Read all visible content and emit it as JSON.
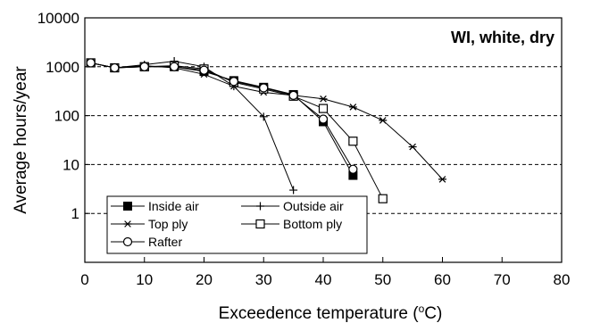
{
  "chart_data": {
    "type": "line",
    "annotation": "WI, white, dry",
    "xlabel": "Exceedence temperature (",
    "xlabel_unit_super": "o",
    "xlabel_unit_tail": "C)",
    "ylabel": "Average hours/year",
    "xlim": [
      0,
      80
    ],
    "ylim": [
      0.1,
      10000
    ],
    "y_scale": "log",
    "grid": "horizontal dashed",
    "legend_position": "bottom-left",
    "x_ticks": [
      "0",
      "10",
      "20",
      "30",
      "40",
      "50",
      "60",
      "70",
      "80"
    ],
    "y_ticks": [
      "1",
      "10",
      "100",
      "1000",
      "10000"
    ],
    "series": [
      {
        "name": "Inside air",
        "marker": "filled-square",
        "x": [
          1,
          5,
          10,
          15,
          20,
          25,
          30,
          35,
          40,
          45
        ],
        "y": [
          1200,
          950,
          1000,
          1000,
          800,
          520,
          380,
          270,
          75,
          6
        ]
      },
      {
        "name": "Outside air",
        "marker": "plus",
        "x": [
          1,
          5,
          10,
          15,
          20,
          25,
          30,
          35
        ],
        "y": [
          1200,
          950,
          1100,
          1300,
          1000,
          400,
          95,
          3
        ]
      },
      {
        "name": "Top ply",
        "marker": "asterisk",
        "x": [
          1,
          5,
          10,
          15,
          20,
          25,
          30,
          35,
          40,
          45,
          50,
          55,
          60
        ],
        "y": [
          1200,
          950,
          1050,
          950,
          700,
          400,
          300,
          260,
          220,
          150,
          80,
          23,
          5
        ]
      },
      {
        "name": "Bottom ply",
        "marker": "open-square",
        "x": [
          1,
          5,
          10,
          15,
          20,
          25,
          30,
          35,
          40,
          45,
          50
        ],
        "y": [
          1200,
          950,
          1000,
          1050,
          900,
          480,
          350,
          250,
          140,
          30,
          2
        ]
      },
      {
        "name": "Rafter",
        "marker": "open-circle",
        "x": [
          1,
          5,
          10,
          15,
          20,
          25,
          30,
          35,
          40,
          45
        ],
        "y": [
          1200,
          950,
          1000,
          1000,
          850,
          500,
          370,
          260,
          85,
          8
        ]
      }
    ]
  }
}
